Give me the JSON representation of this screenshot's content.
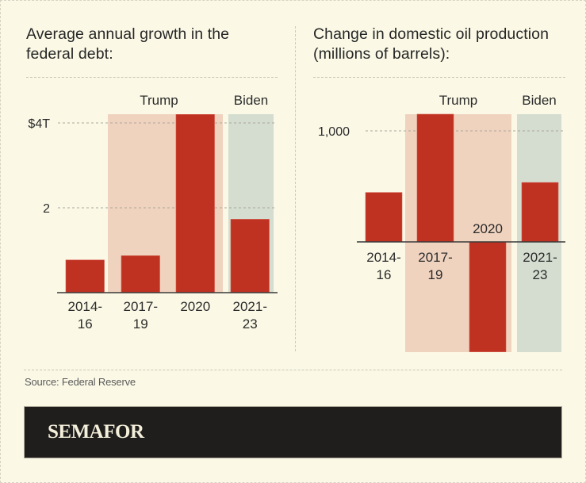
{
  "colors": {
    "background": "#fbf9e6",
    "bar": "#bf3121",
    "trump_band": "#f0d3bf",
    "biden_band": "#d4ddd0",
    "axis": "#3a3a3a",
    "gridline": "#aaa79a"
  },
  "chart_data": [
    {
      "type": "bar",
      "title": "Average annual growth in the federal debt:",
      "categories": [
        "2014-16",
        "2017-19",
        "2020",
        "2021-23"
      ],
      "category_labels": [
        [
          "2014-",
          "16"
        ],
        [
          "2017-",
          "19"
        ],
        [
          "2020"
        ],
        [
          "2021-",
          "23"
        ]
      ],
      "values": [
        0.77,
        0.87,
        4.2,
        1.73
      ],
      "unit": "trillions of dollars",
      "ylim": [
        0,
        4.2
      ],
      "yticks": [
        {
          "value": 2,
          "label": "2"
        },
        {
          "value": 4,
          "label": "$4T"
        }
      ],
      "grid": true,
      "highlights": [
        {
          "label": "Trump",
          "categories": [
            "2017-19",
            "2020"
          ]
        },
        {
          "label": "Biden",
          "categories": [
            "2021-23"
          ]
        }
      ],
      "xlabel": "",
      "ylabel": ""
    },
    {
      "type": "bar",
      "title": "Change in domestic oil production (millions of barrels):",
      "categories": [
        "2014-16",
        "2017-19",
        "2020",
        "2021-23"
      ],
      "category_labels": [
        [
          "2014-",
          "16"
        ],
        [
          "2017-",
          "19"
        ],
        [
          "2020"
        ],
        [
          "2021-",
          "23"
        ]
      ],
      "values": [
        445,
        1150,
        -990,
        535
      ],
      "unit": "millions of barrels",
      "ylim": [
        -990,
        1150
      ],
      "yticks": [
        {
          "value": 1000,
          "label": "1,000"
        }
      ],
      "grid": true,
      "highlights": [
        {
          "label": "Trump",
          "categories": [
            "2017-19",
            "2020"
          ]
        },
        {
          "label": "Biden",
          "categories": [
            "2021-23"
          ]
        }
      ],
      "xlabel": "",
      "ylabel": ""
    }
  ],
  "footer": {
    "source": "Source: Federal Reserve",
    "brand": "SEMAFOR"
  }
}
